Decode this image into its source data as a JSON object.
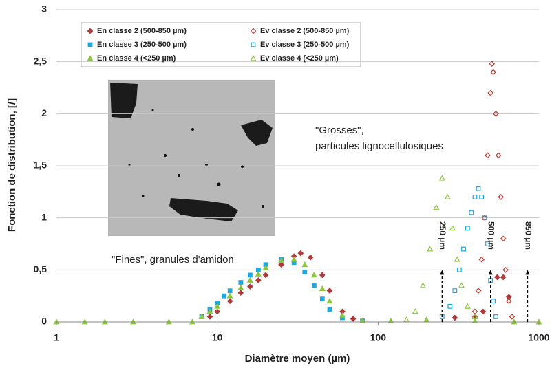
{
  "chart_data": {
    "type": "scatter",
    "x_label": "Diamètre moyen (µm)",
    "y_label": "Fonction de distribution, [/]",
    "x_log": true,
    "grid": true,
    "xlim": [
      1,
      1000
    ],
    "xticks": [
      1,
      10,
      100,
      1000
    ],
    "ylim": [
      0,
      3
    ],
    "yticks": [
      0,
      {
        "value": 0.5,
        "label": "0,5"
      },
      1,
      {
        "value": 1.5,
        "label": "1,5"
      },
      2,
      {
        "value": 2.5,
        "label": "2,5"
      },
      3
    ],
    "annotations": [
      "\"Grosses\",",
      "particules lignocellulosiques",
      "\"Fines\", granules d'amidon"
    ],
    "markers": [
      {
        "x": 250,
        "label": "250 µm"
      },
      {
        "x": 500,
        "label": "500 µm"
      },
      {
        "x": 850,
        "label": "850 µm"
      }
    ],
    "marker_height": 0.5,
    "series": [
      {
        "name": "En classe 2 (500-850 µm)",
        "color": "#b03a3a",
        "marker": "diamond",
        "filled": true,
        "x": [
          9,
          10,
          12,
          14,
          16,
          18,
          20,
          25,
          30,
          33,
          38,
          45,
          50,
          60,
          70,
          300,
          400,
          450,
          550,
          600,
          650
        ],
        "values": [
          0.05,
          0.1,
          0.2,
          0.28,
          0.34,
          0.4,
          0.45,
          0.55,
          0.63,
          0.66,
          0.62,
          0.45,
          0.3,
          0.1,
          0.03,
          0.04,
          0.05,
          0.1,
          0.43,
          0.43,
          0.24
        ]
      },
      {
        "name": "Ev classe 2 (500-850 µm)",
        "color": "#c0392b",
        "marker": "diamond",
        "filled": false,
        "x": [
          400,
          420,
          440,
          460,
          480,
          500,
          510,
          520,
          540,
          560,
          580,
          600,
          620,
          650,
          680
        ],
        "values": [
          0.1,
          0.3,
          0.6,
          1.0,
          1.6,
          2.2,
          2.48,
          2.4,
          2.0,
          1.6,
          1.2,
          0.8,
          0.5,
          0.2,
          0.05
        ]
      },
      {
        "name": "En classe 3 (250-500 µm)",
        "color": "#1fa7e0",
        "marker": "square",
        "filled": true,
        "x": [
          8,
          9,
          10,
          11,
          12,
          14,
          16,
          18,
          20,
          25,
          30,
          35,
          40,
          45,
          50,
          60,
          80
        ],
        "values": [
          0.05,
          0.12,
          0.18,
          0.25,
          0.3,
          0.38,
          0.45,
          0.5,
          0.55,
          0.6,
          0.57,
          0.48,
          0.35,
          0.22,
          0.12,
          0.04,
          0.01
        ]
      },
      {
        "name": "Ev classe 3 (250-500 µm)",
        "color": "#1fa7e0",
        "marker": "square",
        "filled": false,
        "x": [
          250,
          280,
          300,
          320,
          340,
          360,
          380,
          400,
          420,
          440,
          460,
          480,
          500,
          520,
          540
        ],
        "values": [
          0.05,
          0.15,
          0.3,
          0.5,
          0.7,
          0.9,
          1.05,
          1.2,
          1.28,
          1.2,
          1.0,
          0.75,
          0.4,
          0.2,
          0.05
        ]
      },
      {
        "name": "En classe 4 (<250 µm)",
        "color": "#8cc63f",
        "marker": "triangle",
        "filled": true,
        "x": [
          1,
          1.5,
          2,
          3,
          5,
          7,
          8,
          9,
          10,
          12,
          14,
          16,
          18,
          20,
          25,
          30,
          35,
          40,
          45,
          50,
          60,
          80,
          120,
          200,
          400,
          700,
          1000
        ],
        "values": [
          0,
          0,
          0,
          0,
          0,
          0,
          0.05,
          0.1,
          0.15,
          0.25,
          0.33,
          0.4,
          0.46,
          0.52,
          0.59,
          0.6,
          0.55,
          0.45,
          0.32,
          0.2,
          0.06,
          0.01,
          0.01,
          0.02,
          0.01,
          0,
          0
        ]
      },
      {
        "name": "Ev classe 4 (<250 µm)",
        "color": "#8cc63f",
        "marker": "triangle",
        "filled": false,
        "x": [
          150,
          170,
          190,
          210,
          230,
          250,
          270,
          290,
          310,
          330,
          360,
          400
        ],
        "values": [
          0.02,
          0.1,
          0.35,
          0.7,
          1.1,
          1.38,
          1.2,
          0.9,
          0.6,
          0.35,
          0.15,
          0.05
        ]
      }
    ]
  }
}
